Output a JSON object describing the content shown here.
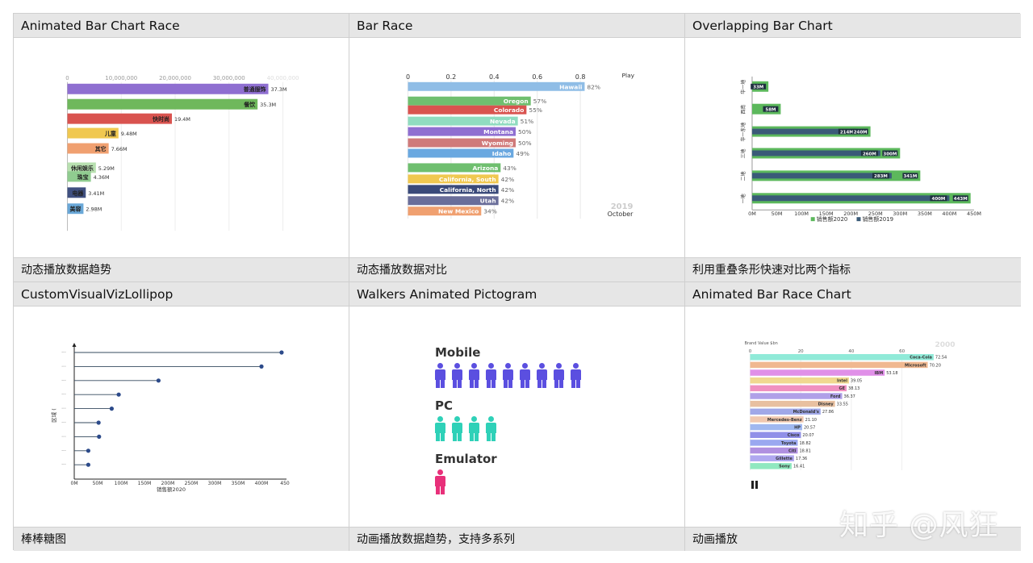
{
  "cells": [
    {
      "title": "Animated Bar Chart Race",
      "desc": "动态播放数据趋势"
    },
    {
      "title": "Bar Race",
      "desc": "动态播放数据对比"
    },
    {
      "title": "Overlapping Bar Chart",
      "desc": "利用重叠条形快速对比两个指标"
    },
    {
      "title": "CustomVisualVizLollipop",
      "desc": "棒棒糖图"
    },
    {
      "title": "Walkers Animated Pictogram",
      "desc": "动画播放数据趋势，支持多系列"
    },
    {
      "title": "Animated Bar Race Chart",
      "desc": "动画播放"
    }
  ],
  "watermark": "知乎 @风狂",
  "chart_data": [
    {
      "type": "bar",
      "orientation": "horizontal",
      "x_ticks": [
        "0",
        "10,000,000",
        "20,000,000",
        "30,000,000",
        "40,000,000"
      ],
      "xlim": [
        0,
        40000000
      ],
      "categories": [
        "普通服饰",
        "餐饮",
        "快时尚",
        "儿童",
        "其它",
        "休闲娱乐",
        "珠宝",
        "电器",
        "美容"
      ],
      "values": [
        37300000,
        35300000,
        19400000,
        9480000,
        7660000,
        5290000,
        4360000,
        3410000,
        2980000
      ],
      "value_labels": [
        "37.3M",
        "35.3M",
        "19.4M",
        "9.48M",
        "7.66M",
        "5.29M",
        "4.36M",
        "3.41M",
        "2.98M"
      ],
      "colors": [
        "#8f6fd1",
        "#6fb85c",
        "#d9534f",
        "#f0c850",
        "#f0a070",
        "#b8e0b0",
        "#90cc90",
        "#405080",
        "#6aa8d8"
      ]
    },
    {
      "type": "bar",
      "orientation": "horizontal",
      "x_ticks": [
        "0",
        "0.2",
        "0.4",
        "0.6",
        "0.8"
      ],
      "xlim": [
        0,
        1
      ],
      "axis_title": "Play",
      "categories": [
        "Hawaii",
        "Oregon",
        "Colorado",
        "Nevada",
        "Montana",
        "Wyoming",
        "Idaho",
        "Arizona",
        "California, South",
        "California, North",
        "Utah",
        "New Mexico"
      ],
      "values": [
        0.82,
        0.57,
        0.55,
        0.51,
        0.5,
        0.5,
        0.49,
        0.43,
        0.42,
        0.42,
        0.42,
        0.34
      ],
      "value_labels": [
        "82%",
        "57%",
        "55%",
        "51%",
        "50%",
        "50%",
        "49%",
        "43%",
        "42%",
        "42%",
        "42%",
        "34%"
      ],
      "colors": [
        "#8fbde6",
        "#6fbf6f",
        "#d9534f",
        "#90dcc0",
        "#8f6fd1",
        "#d07a7a",
        "#6aa8e0",
        "#6fbf6f",
        "#f0c850",
        "#3a4a7a",
        "#6a6e9a",
        "#f0a070"
      ],
      "year_label": "2019",
      "month_label": "October"
    },
    {
      "type": "bar",
      "orientation": "horizontal",
      "x_ticks": [
        "0M",
        "50M",
        "100M",
        "150M",
        "200M",
        "250M",
        "300M",
        "350M",
        "400M",
        "450M"
      ],
      "xlim": [
        0,
        450
      ],
      "categories": [
        "华一地",
        "西南",
        "华一东地",
        "三地",
        "二地",
        "一地"
      ],
      "series": [
        {
          "name": "销售额2020",
          "values": [
            33,
            58,
            240,
            300,
            341,
            443
          ],
          "labels": [
            "33M",
            "58M",
            "240M",
            "300M",
            "341M",
            "443M"
          ],
          "color": "#5cb85c"
        },
        {
          "name": "销售额2019",
          "values": [
            null,
            null,
            214,
            260,
            283,
            400
          ],
          "labels": [
            "",
            "",
            "214M",
            "260M",
            "283M",
            "400M"
          ],
          "color": "#3a5a78"
        }
      ]
    },
    {
      "type": "scatter",
      "style": "lollipop",
      "x_ticks": [
        "0M",
        "50M",
        "100M",
        "150M",
        "200M",
        "250M",
        "300M",
        "350M",
        "400M",
        "450"
      ],
      "xlim": [
        0,
        450
      ],
      "xlabel": "销售额2020",
      "ylabel": "区域 (",
      "values": [
        443,
        400,
        180,
        95,
        80,
        52,
        53,
        30,
        30
      ],
      "category_labels": [
        "···",
        "···",
        "···",
        "···",
        "···",
        "···",
        "···",
        "···",
        "···"
      ]
    },
    {
      "type": "bar",
      "style": "pictogram",
      "categories": [
        "Mobile",
        "PC",
        "Emulator"
      ],
      "values": [
        9,
        4,
        1
      ],
      "colors": [
        "#5b4fe0",
        "#2fd1b8",
        "#e8307a"
      ]
    },
    {
      "type": "bar",
      "orientation": "horizontal",
      "axis_title": "Brand Value $bn",
      "x_ticks": [
        "0",
        "20",
        "40",
        "60"
      ],
      "xlim": [
        0,
        74
      ],
      "year_label": "2000",
      "categories": [
        "Coca-Cola",
        "Microsoft",
        "IBM",
        "Intel",
        "GE",
        "Ford",
        "Disney",
        "McDonald's",
        "Mercedes-Benz",
        "HP",
        "Cisco",
        "Toyota",
        "Citi",
        "Gillette",
        "Sony"
      ],
      "values": [
        72.54,
        70.2,
        53.18,
        39.05,
        38.13,
        36.37,
        33.55,
        27.86,
        21.1,
        20.57,
        20.07,
        18.82,
        18.81,
        17.36,
        16.41
      ],
      "value_labels": [
        "72.54",
        "70.20",
        "53.18",
        "39.05",
        "38.13",
        "36.37",
        "33.55",
        "27.86",
        "21.10",
        "20.57",
        "20.07",
        "18.82",
        "18.81",
        "17.36",
        "16.41"
      ],
      "colors": [
        "#90ead8",
        "#f0b890",
        "#e090e8",
        "#f0d890",
        "#f090c0",
        "#b0a0e8",
        "#e8c0a0",
        "#a0a8e8",
        "#f0c8b0",
        "#a0b8f0",
        "#9090e8",
        "#9aa8f0",
        "#b090e0",
        "#b0a8f0",
        "#90e8c0"
      ]
    }
  ]
}
